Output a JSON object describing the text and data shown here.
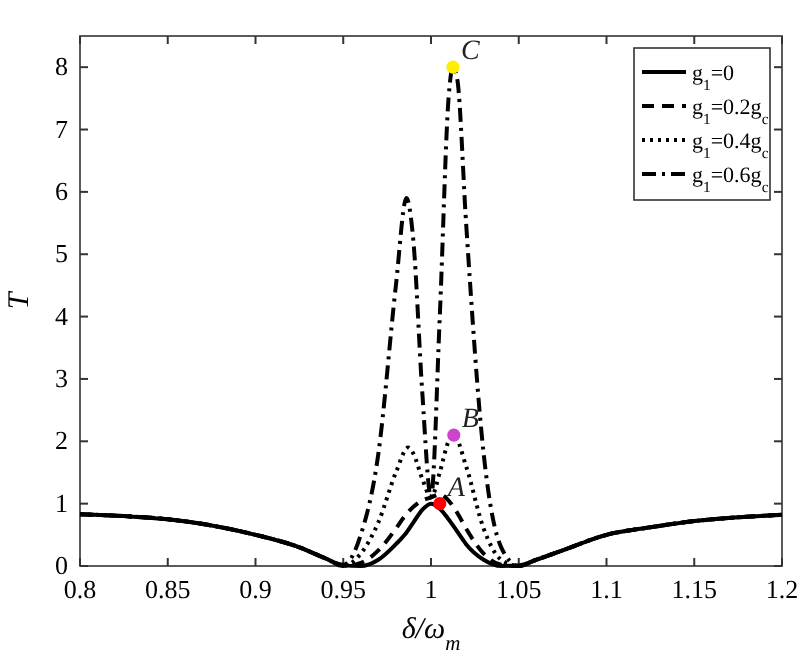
{
  "chart_data": {
    "type": "line",
    "xlabel": "δ/ω$_{m}$",
    "ylabel": "T",
    "xlim": [
      0.8,
      1.2
    ],
    "ylim": [
      0,
      8.5
    ],
    "xticks": [
      0.8,
      0.85,
      0.9,
      0.95,
      1,
      1.05,
      1.1,
      1.15,
      1.2
    ],
    "yticks": [
      0,
      1,
      2,
      3,
      4,
      5,
      6,
      7,
      8
    ],
    "grid": false,
    "legend": "top right",
    "marker": "none",
    "series": [
      {
        "name": "g$_{1}$=0",
        "color": "#000000",
        "line_style": "solid",
        "x": [
          0.8,
          0.825,
          0.85,
          0.875,
          0.9,
          0.925,
          0.94,
          0.95,
          0.96,
          0.97,
          0.98,
          0.985,
          0.99,
          0.995,
          1,
          1.005,
          1.01,
          1.015,
          1.02,
          1.03,
          1.04,
          1.05,
          1.06,
          1.075,
          1.1,
          1.125,
          1.15,
          1.175,
          1.2
        ],
        "values": [
          0.83,
          0.8,
          0.75,
          0.65,
          0.5,
          0.3,
          0.12,
          0.01,
          0,
          0.1,
          0.35,
          0.5,
          0.7,
          0.9,
          1.0,
          0.92,
          0.75,
          0.55,
          0.35,
          0.1,
          0,
          0.01,
          0.1,
          0.25,
          0.5,
          0.62,
          0.72,
          0.78,
          0.82
        ]
      },
      {
        "name": "g$_{1}$=0.2g$_{c}$",
        "color": "#000000",
        "line_style": "dashed",
        "x": [
          0.8,
          0.825,
          0.85,
          0.875,
          0.9,
          0.925,
          0.94,
          0.95,
          0.96,
          0.97,
          0.98,
          0.985,
          0.99,
          0.995,
          1,
          1.005,
          1.01,
          1.015,
          1.02,
          1.03,
          1.04,
          1.05,
          1.06,
          1.075,
          1.1,
          1.125,
          1.15,
          1.175,
          1.2
        ],
        "values": [
          0.83,
          0.8,
          0.75,
          0.65,
          0.5,
          0.3,
          0.12,
          0,
          0.05,
          0.25,
          0.6,
          0.8,
          0.95,
          1.05,
          1.1,
          1.15,
          1.05,
          0.85,
          0.6,
          0.2,
          0.02,
          0,
          0.1,
          0.25,
          0.5,
          0.62,
          0.72,
          0.78,
          0.82
        ]
      },
      {
        "name": "g$_{1}$=0.4g$_{c}$",
        "color": "#000000",
        "line_style": "dotted",
        "x": [
          0.8,
          0.825,
          0.85,
          0.875,
          0.9,
          0.925,
          0.94,
          0.95,
          0.96,
          0.97,
          0.98,
          0.987,
          0.99,
          0.995,
          1,
          1.005,
          1.01,
          1.013,
          1.02,
          1.03,
          1.04,
          1.05,
          1.06,
          1.075,
          1.1,
          1.125,
          1.15,
          1.175,
          1.2
        ],
        "values": [
          0.83,
          0.8,
          0.75,
          0.65,
          0.5,
          0.3,
          0.12,
          0,
          0.2,
          0.7,
          1.5,
          1.9,
          1.8,
          1.4,
          1.1,
          1.5,
          2.0,
          2.1,
          1.6,
          0.6,
          0.1,
          0,
          0.1,
          0.25,
          0.5,
          0.62,
          0.72,
          0.78,
          0.82
        ]
      },
      {
        "name": "g$_{1}$=0.6g$_{c}$",
        "color": "#000000",
        "line_style": "dashdot",
        "x": [
          0.8,
          0.825,
          0.85,
          0.875,
          0.9,
          0.925,
          0.94,
          0.95,
          0.96,
          0.97,
          0.98,
          0.986,
          0.99,
          0.995,
          1,
          1.005,
          1.01,
          1.0125,
          1.015,
          1.02,
          1.03,
          1.04,
          1.05,
          1.06,
          1.075,
          1.1,
          1.125,
          1.15,
          1.175,
          1.2
        ],
        "values": [
          0.83,
          0.8,
          0.75,
          0.65,
          0.5,
          0.3,
          0.12,
          0.02,
          0.5,
          1.8,
          4.5,
          5.9,
          5.2,
          2.8,
          1.1,
          4.0,
          7.5,
          8.0,
          7.8,
          5.5,
          1.8,
          0.3,
          0,
          0.1,
          0.25,
          0.5,
          0.62,
          0.72,
          0.78,
          0.82
        ]
      },
      {
        "type": "scatter",
        "color": "#ff0000",
        "marker": "circle",
        "x": [
          1.005
        ],
        "values": [
          1.0
        ]
      },
      {
        "type": "scatter",
        "color": "#cc44cc",
        "marker": "circle",
        "x": [
          1.013
        ],
        "values": [
          2.1
        ]
      },
      {
        "type": "scatter",
        "color": "#ffee00",
        "marker": "circle",
        "x": [
          1.0125
        ],
        "values": [
          8.0
        ]
      }
    ],
    "annotations": [
      {
        "text": "A",
        "x": 1.005,
        "y": 1.0
      },
      {
        "text": "B",
        "x": 1.013,
        "y": 2.1
      },
      {
        "text": "C",
        "x": 1.0125,
        "y": 8.0
      }
    ]
  }
}
